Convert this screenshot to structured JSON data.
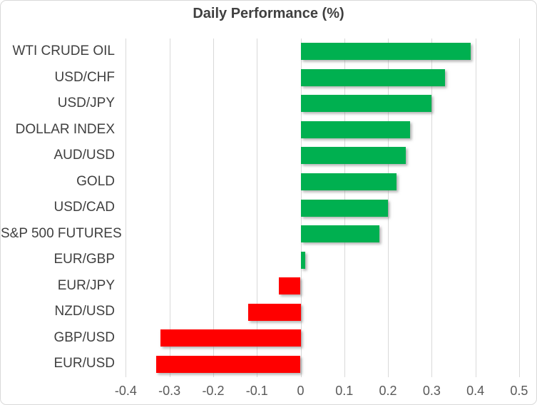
{
  "chart_data": {
    "type": "bar",
    "orientation": "horizontal",
    "title": "Daily Performance (%)",
    "categories": [
      "WTI CRUDE OIL",
      "USD/CHF",
      "USD/JPY",
      "DOLLAR INDEX",
      "AUD/USD",
      "GOLD",
      "USD/CAD",
      "S&P 500 FUTURES",
      "EUR/GBP",
      "EUR/JPY",
      "NZD/USD",
      "GBP/USD",
      "EUR/USD"
    ],
    "values": [
      0.39,
      0.33,
      0.3,
      0.25,
      0.24,
      0.22,
      0.2,
      0.18,
      0.01,
      -0.05,
      -0.12,
      -0.32,
      -0.33
    ],
    "xlabel": "",
    "ylabel": "",
    "xlim": [
      -0.4,
      0.5
    ],
    "x_tick_labels": [
      "-0.4",
      "-0.3",
      "-0.2",
      "-0.1",
      "0",
      "0.1",
      "0.2",
      "0.3",
      "0.4",
      "0.5"
    ],
    "x_tick_values": [
      -0.4,
      -0.3,
      -0.2,
      -0.1,
      0,
      0.1,
      0.2,
      0.3,
      0.4,
      0.5
    ],
    "grid": "vertical-only",
    "legend": "none",
    "bar_style": "solid with drop shadow",
    "colors": {
      "positive": "#00B050",
      "negative": "#FF0000",
      "gridline": "#D9D9D9",
      "chart_border": "#D9D9D9",
      "title_text": "#404040",
      "category_text": "#404040",
      "tick_text": "#595959",
      "background": "#FFFFFF"
    }
  }
}
